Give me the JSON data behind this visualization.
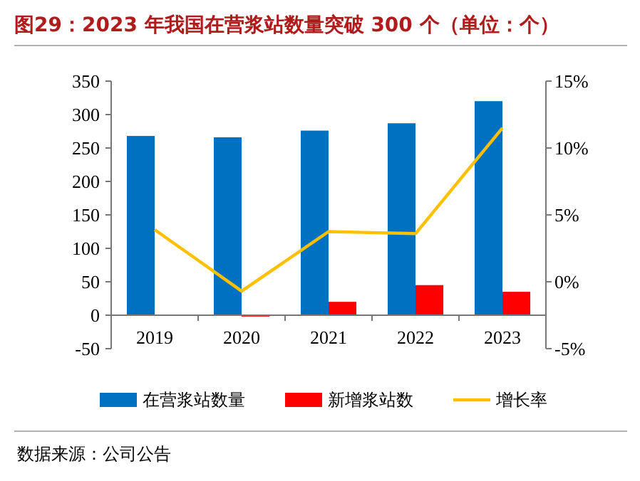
{
  "chart_data": {
    "type": "bar",
    "title": "图29：2023 年我国在营浆站数量突破 300 个（单位：个）",
    "categories": [
      "2019",
      "2020",
      "2021",
      "2022",
      "2023"
    ],
    "series": [
      {
        "name": "在营浆站数量",
        "color": "#0070c0",
        "values": [
          268,
          266,
          276,
          287,
          320
        ]
      },
      {
        "name": "新增浆站数",
        "color": "#ff0000",
        "values": [
          null,
          -2,
          20,
          45,
          35
        ]
      },
      {
        "name": "增长率",
        "type": "line",
        "axis": "y2",
        "color": "#ffc000",
        "values": [
          3.9,
          -0.7,
          3.75,
          3.6,
          11.5
        ]
      }
    ],
    "ylim": [
      -50,
      350
    ],
    "yticks": [
      -50,
      0,
      50,
      100,
      150,
      200,
      250,
      300,
      350
    ],
    "y2lim": [
      -5,
      15
    ],
    "y2ticks": [
      {
        "value": -5,
        "label": "-5%"
      },
      {
        "value": 0,
        "label": "0%"
      },
      {
        "value": 5,
        "label": "5%"
      },
      {
        "value": 10,
        "label": "10%"
      },
      {
        "value": 15,
        "label": "15%"
      }
    ],
    "legend": "bottom",
    "annotations": [
      "数据来源：公司公告"
    ]
  }
}
